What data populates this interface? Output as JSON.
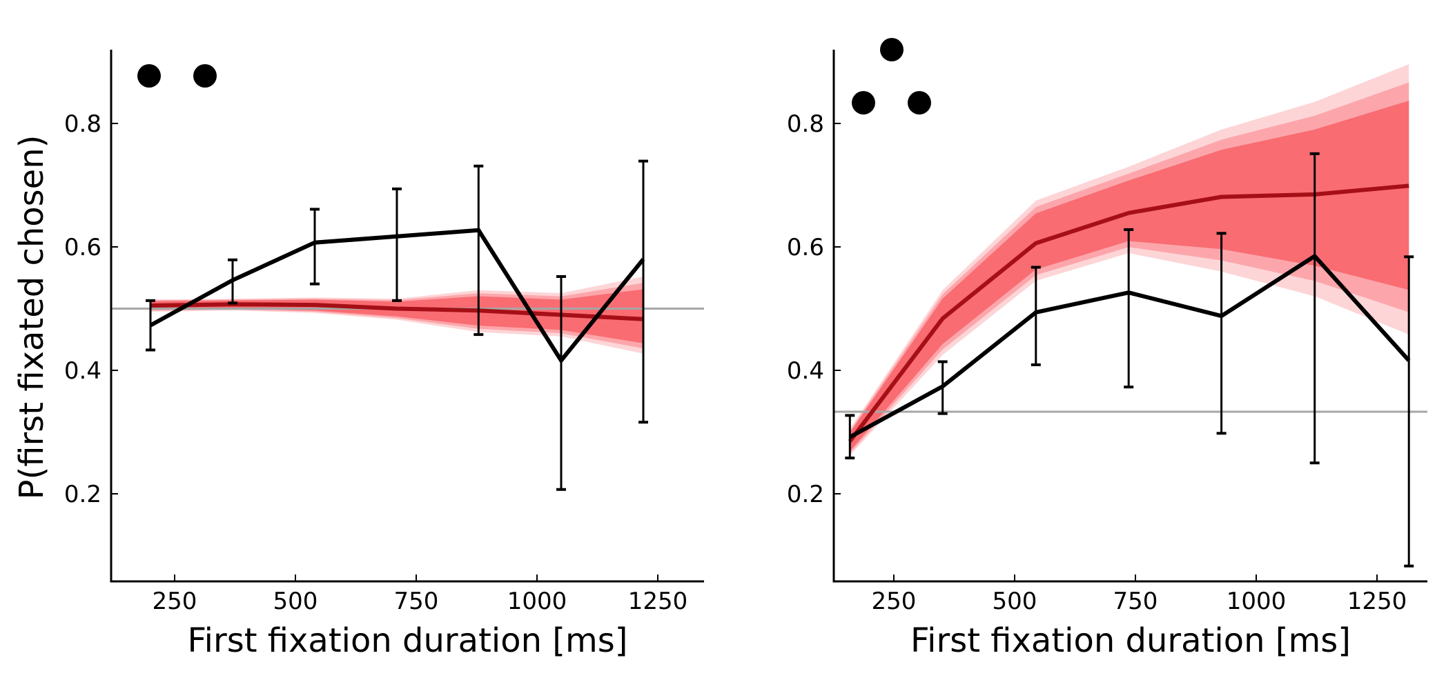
{
  "chart_data": [
    {
      "type": "line",
      "panel": "left",
      "title": "",
      "xlabel": "First fixation duration [ms]",
      "ylabel": "P(first fixated chosen)",
      "xlim": [
        122,
        1350
      ],
      "ylim": [
        0.06,
        0.92
      ],
      "xticks": [
        250,
        500,
        750,
        1000,
        1250
      ],
      "xtick_labels": [
        "250",
        "500",
        "750",
        "1000",
        "1250"
      ],
      "yticks": [
        0.2,
        0.4,
        0.6,
        0.8
      ],
      "ytick_labels": [
        "0.2",
        "0.4",
        "0.6",
        "0.8"
      ],
      "grid": false,
      "chance_level": 0.5,
      "set_size_icon": {
        "dots": 2,
        "layout": "pair"
      },
      "series": [
        {
          "name": "data",
          "color": "#000000",
          "x": [
            200,
            370,
            540,
            710,
            879,
            1050,
            1220
          ],
          "y": [
            0.473,
            0.546,
            0.607,
            0.617,
            0.627,
            0.416,
            0.58
          ],
          "err_low": [
            0.433,
            0.509,
            0.54,
            0.513,
            0.458,
            0.207,
            0.316
          ],
          "err_high": [
            0.513,
            0.579,
            0.661,
            0.694,
            0.731,
            0.552,
            0.739
          ]
        },
        {
          "name": "model",
          "color": "#a50f15",
          "band_color": "#f8686f",
          "x": [
            200,
            370,
            540,
            710,
            879,
            1050,
            1220
          ],
          "y": [
            0.505,
            0.507,
            0.506,
            0.5,
            0.497,
            0.49,
            0.483
          ],
          "band_low": [
            0.495,
            0.497,
            0.493,
            0.482,
            0.462,
            0.455,
            0.427
          ],
          "band_high": [
            0.515,
            0.516,
            0.518,
            0.516,
            0.53,
            0.525,
            0.552
          ]
        }
      ]
    },
    {
      "type": "line",
      "panel": "right",
      "title": "",
      "xlabel": "First fixation duration [ms]",
      "ylabel": "",
      "xlim": [
        130,
        1365
      ],
      "ylim": [
        0.06,
        0.92
      ],
      "xticks": [
        250,
        500,
        750,
        1000,
        1250
      ],
      "xtick_labels": [
        "250",
        "500",
        "750",
        "1000",
        "1250"
      ],
      "yticks": [
        0.2,
        0.4,
        0.6,
        0.8
      ],
      "ytick_labels": [
        "0.2",
        "0.4",
        "0.6",
        "0.8"
      ],
      "grid": false,
      "chance_level": 0.333,
      "set_size_icon": {
        "dots": 3,
        "layout": "triangle"
      },
      "series": [
        {
          "name": "data",
          "color": "#000000",
          "x": [
            159,
            351,
            544,
            736,
            928,
            1121,
            1316
          ],
          "y": [
            0.292,
            0.374,
            0.494,
            0.526,
            0.488,
            0.585,
            0.416
          ],
          "err_low": [
            0.258,
            0.33,
            0.409,
            0.373,
            0.298,
            0.25,
            0.083
          ],
          "err_high": [
            0.327,
            0.414,
            0.567,
            0.628,
            0.622,
            0.751,
            0.584
          ]
        },
        {
          "name": "model",
          "color": "#a50f15",
          "band_color": "#f8686f",
          "x": [
            159,
            351,
            544,
            736,
            928,
            1121,
            1316
          ],
          "y": [
            0.285,
            0.484,
            0.606,
            0.655,
            0.681,
            0.685,
            0.699
          ],
          "band_low": [
            0.262,
            0.425,
            0.545,
            0.59,
            0.56,
            0.52,
            0.458
          ],
          "band_high": [
            0.305,
            0.53,
            0.675,
            0.73,
            0.79,
            0.835,
            0.896
          ]
        }
      ]
    }
  ]
}
